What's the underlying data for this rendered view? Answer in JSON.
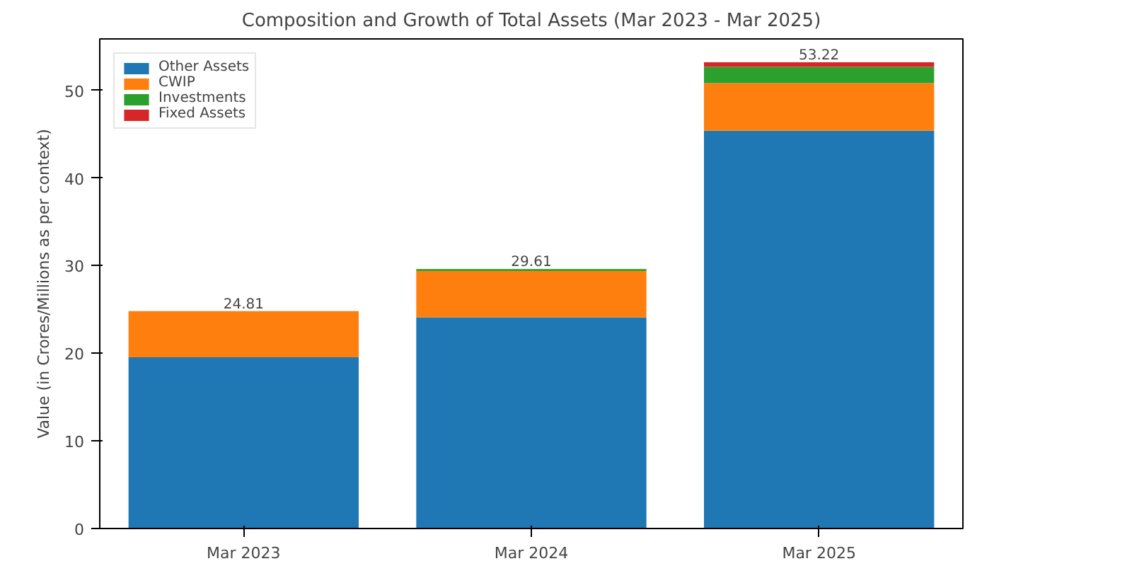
{
  "chart_data": {
    "type": "bar",
    "title": "Composition and Growth of Total Assets (Mar 2023 - Mar 2025)",
    "ylabel": "Value (in Crores/Millions as per context)",
    "categories": [
      "Mar 2023",
      "Mar 2024",
      "Mar 2025"
    ],
    "stacked": true,
    "series": [
      {
        "name": "Other Assets",
        "color": "#1f77b4",
        "values": [
          19.55,
          24.1,
          45.4
        ]
      },
      {
        "name": "CWIP",
        "color": "#ff7f0e",
        "values": [
          5.26,
          5.3,
          5.44
        ]
      },
      {
        "name": "Investments",
        "color": "#2ca02c",
        "values": [
          0,
          0.21,
          1.86
        ]
      },
      {
        "name": "Fixed Assets",
        "color": "#d62728",
        "values": [
          0,
          0,
          0.52
        ]
      }
    ],
    "totals": [
      "24.81",
      "29.61",
      "53.22"
    ],
    "ylim": [
      0,
      55.88
    ],
    "yticks": [
      0,
      10,
      20,
      30,
      40,
      50
    ],
    "grid": false,
    "legend": "top left"
  }
}
